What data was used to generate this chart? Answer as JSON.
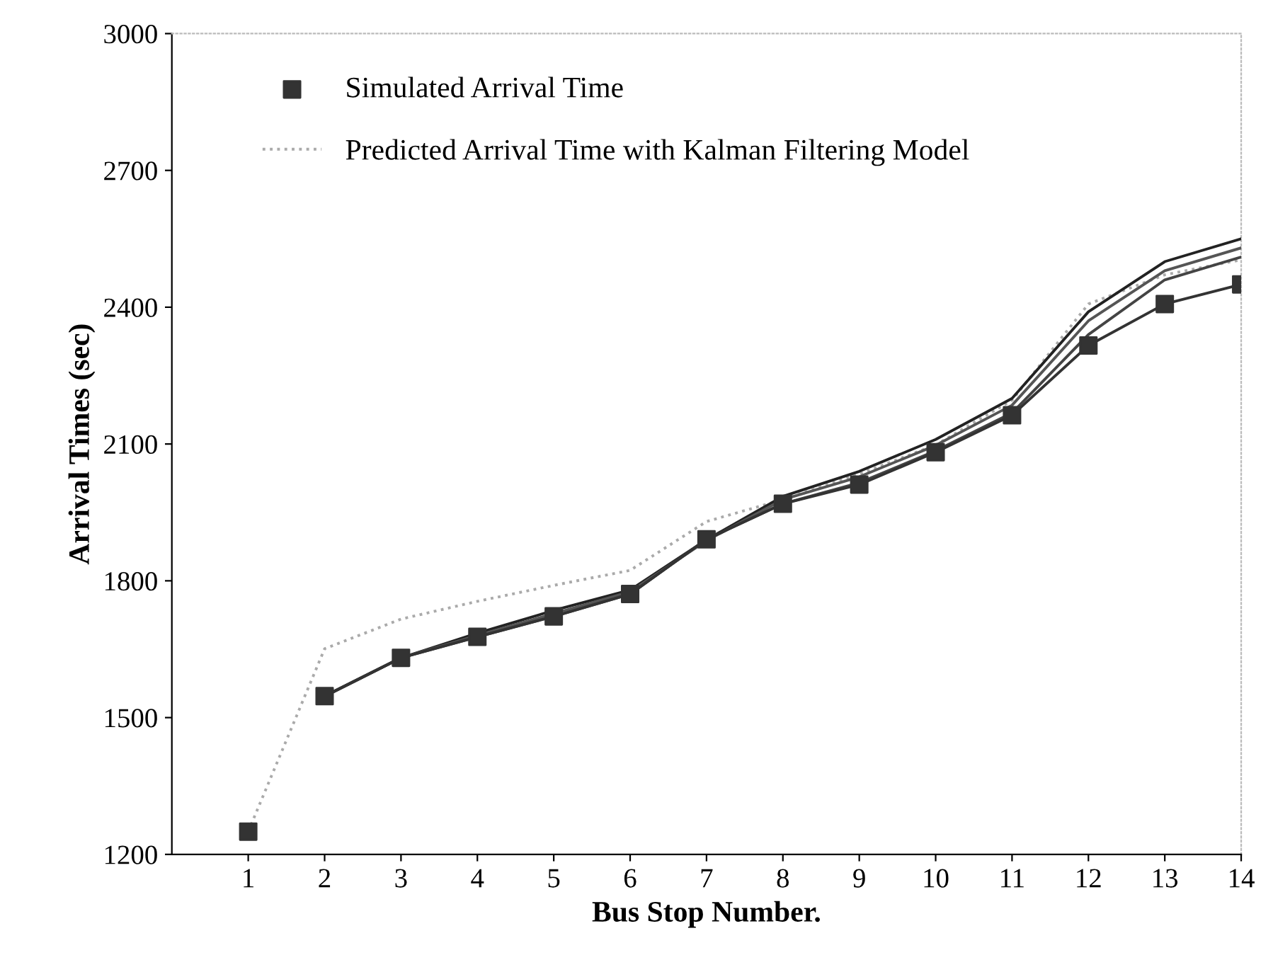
{
  "chart_data": {
    "type": "line",
    "xlabel": "Bus Stop Number.",
    "ylabel": "Arrival Times (sec)",
    "xlim": [
      0,
      14
    ],
    "xticks": [
      1,
      2,
      3,
      4,
      5,
      6,
      7,
      8,
      9,
      10,
      11,
      12,
      13,
      14
    ],
    "ylim": [
      1200,
      3000
    ],
    "yticks": [
      1200,
      1500,
      1800,
      2100,
      2400,
      2700,
      3000
    ],
    "legend": "top left",
    "series": [
      {
        "name": "Simulated Arrival Time",
        "type": "scatter",
        "marker": "square",
        "color": "#333333",
        "x": [
          1,
          2,
          3,
          4,
          5,
          6,
          7,
          8,
          9,
          10,
          11,
          12,
          13,
          14
        ],
        "values": [
          1250,
          1547,
          1631,
          1677,
          1722,
          1771,
          1891,
          1969,
          2011,
          2082,
          2163,
          2316,
          2407,
          2450
        ]
      },
      {
        "name": "Predicted Arrival Time with Kalman Filtering Model",
        "line_style": "dotted",
        "color": "#aaaaaa",
        "x": [
          1,
          2,
          3,
          4,
          5,
          6,
          7,
          8,
          9,
          10,
          11,
          12,
          13,
          14
        ],
        "values": [
          1250,
          1651,
          1716,
          1755,
          1790,
          1823,
          1930,
          1978,
          2034,
          2098,
          2196,
          2407,
          2471,
          2504
        ]
      },
      {
        "line_style": "solid",
        "color": "#222222",
        "x": [
          2,
          3,
          4,
          5,
          6,
          7,
          8,
          9,
          10,
          11,
          12,
          13,
          14
        ],
        "values": [
          1547,
          1631,
          1685,
          1735,
          1780,
          1890,
          1985,
          2040,
          2110,
          2200,
          2390,
          2500,
          2550
        ]
      },
      {
        "line_style": "solid",
        "color": "#555555",
        "x": [
          2,
          3,
          4,
          5,
          6,
          7,
          8,
          9,
          10,
          11,
          12,
          13,
          14
        ],
        "values": [
          1547,
          1631,
          1680,
          1728,
          1776,
          1888,
          1978,
          2028,
          2097,
          2185,
          2370,
          2480,
          2530
        ]
      },
      {
        "line_style": "solid",
        "color": "#444444",
        "x": [
          2,
          3,
          4,
          5,
          6,
          7,
          8,
          9,
          10,
          11,
          12,
          13,
          14
        ],
        "values": [
          1547,
          1631,
          1677,
          1722,
          1771,
          1891,
          1969,
          2015,
          2085,
          2168,
          2340,
          2460,
          2510
        ]
      },
      {
        "line_style": "solid",
        "color": "#333333",
        "x": [
          2,
          3,
          4,
          5,
          6,
          7,
          8,
          9,
          10,
          11,
          12,
          13,
          14
        ],
        "values": [
          1547,
          1631,
          1677,
          1722,
          1771,
          1891,
          1969,
          2011,
          2082,
          2163,
          2316,
          2407,
          2450
        ]
      }
    ]
  }
}
